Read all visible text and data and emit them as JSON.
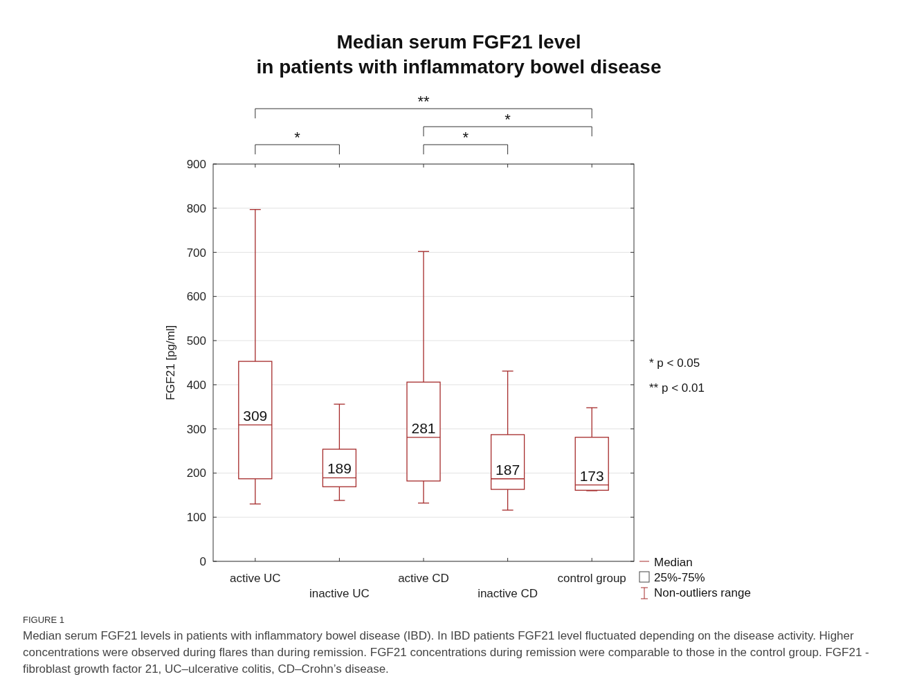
{
  "chart_data": {
    "type": "box",
    "title": "Median serum FGF21 level\nin patients with inflammatory bowel disease",
    "ylabel": "FGF21 [pg/ml]",
    "categories": [
      "active UC",
      "inactive UC",
      "active CD",
      "inactive CD",
      "control group"
    ],
    "boxes": [
      {
        "low": 130,
        "q1": 187,
        "median": 309,
        "q3": 453,
        "high": 797
      },
      {
        "low": 138,
        "q1": 169,
        "median": 189,
        "q3": 254,
        "high": 356
      },
      {
        "low": 132,
        "q1": 182,
        "median": 281,
        "q3": 406,
        "high": 702
      },
      {
        "low": 116,
        "q1": 163,
        "median": 187,
        "q3": 287,
        "high": 431
      },
      {
        "low": 160,
        "q1": 161,
        "median": 173,
        "q3": 281,
        "high": 348
      }
    ],
    "color": "#a52a2a",
    "ylim": [
      0,
      900
    ],
    "yticks": [
      0,
      100,
      200,
      300,
      400,
      500,
      600,
      700,
      800,
      900
    ],
    "grid": "y",
    "annotations": [
      "*",
      "*",
      "*",
      "**",
      "* p < 0.05",
      "** p < 0.01",
      "FIGURE 1",
      "Median",
      "25%-75%",
      "Non-outliers range",
      {
        "text": "309",
        "x": "active UC",
        "y": 309
      },
      {
        "text": "189",
        "x": "inactive UC",
        "y": 189
      },
      {
        "text": "281",
        "x": "active CD",
        "y": 281
      },
      {
        "text": "187",
        "x": "inactive CD",
        "y": 187
      },
      {
        "text": "173",
        "x": "control group",
        "y": 173
      },
      "Median serum FGF21 levels in patients with inflammatory bowel disease (IBD). In IBD patients FGF21 level fluctuated depending on the disease activity. Higher concentrations were observed during flares than during remission. FGF21 concentrations during remission were comparable to those in the control group. FGF21 - fibroblast growth factor 21, UC–ulcerative colitis, CD–Crohn’s disease."
    ]
  }
}
